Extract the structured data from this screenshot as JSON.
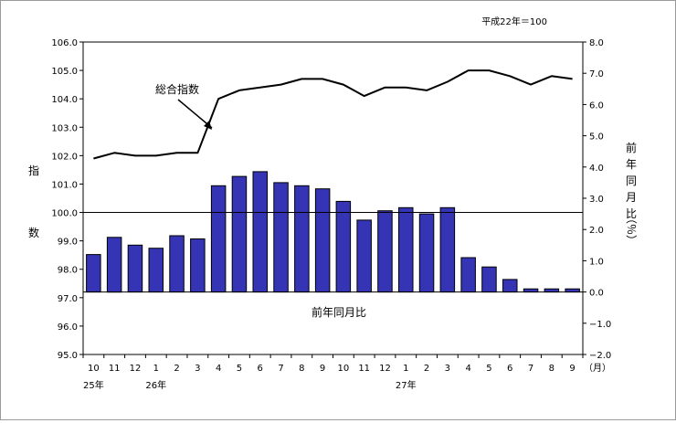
{
  "chart_data": {
    "type": "bar+line",
    "base_note": "平成22年＝100",
    "left_axis": {
      "label": [
        "指",
        "数"
      ],
      "ylim": [
        95.0,
        106.0
      ],
      "ticks": [
        "95.0",
        "96.0",
        "97.0",
        "98.0",
        "99.0",
        "100.0",
        "101.0",
        "102.0",
        "103.0",
        "104.0",
        "105.0",
        "106.0"
      ]
    },
    "right_axis": {
      "label": [
        "前",
        "年",
        "同",
        "月",
        "比",
        "（％）"
      ],
      "ylim": [
        -2.0,
        8.0
      ],
      "ticks": [
        "−2.0",
        "−1.0",
        "0.0",
        "1.0",
        "2.0",
        "3.0",
        "4.0",
        "5.0",
        "6.0",
        "7.0",
        "8.0"
      ]
    },
    "x_tick_labels": [
      "10",
      "11",
      "12",
      "1",
      "2",
      "3",
      "4",
      "5",
      "6",
      "7",
      "8",
      "9",
      "10",
      "11",
      "12",
      "1",
      "2",
      "3",
      "4",
      "5",
      "6",
      "7",
      "8",
      "9"
    ],
    "x_unit": "（月）",
    "year_labels": [
      {
        "text": "25年",
        "at_index": 0
      },
      {
        "text": "26年",
        "at_index": 3
      },
      {
        "text": "27年",
        "at_index": 15
      }
    ],
    "reference_line": 100.0,
    "series": [
      {
        "name": "総合指数",
        "kind": "line",
        "axis": "left",
        "values": [
          101.9,
          102.1,
          102.0,
          102.0,
          102.1,
          102.1,
          104.0,
          104.3,
          104.4,
          104.5,
          104.7,
          104.7,
          104.5,
          104.1,
          104.4,
          104.4,
          104.3,
          104.6,
          105.0,
          105.0,
          104.8,
          104.5,
          104.8,
          104.7
        ]
      },
      {
        "name": "前年同月比",
        "kind": "bar",
        "axis": "right",
        "values": [
          1.2,
          1.75,
          1.5,
          1.4,
          1.8,
          1.7,
          3.4,
          3.7,
          3.85,
          3.5,
          3.4,
          3.3,
          2.9,
          2.3,
          2.6,
          2.7,
          2.5,
          2.7,
          1.1,
          0.8,
          0.4,
          0.1,
          0.1,
          0.1
        ]
      }
    ]
  }
}
